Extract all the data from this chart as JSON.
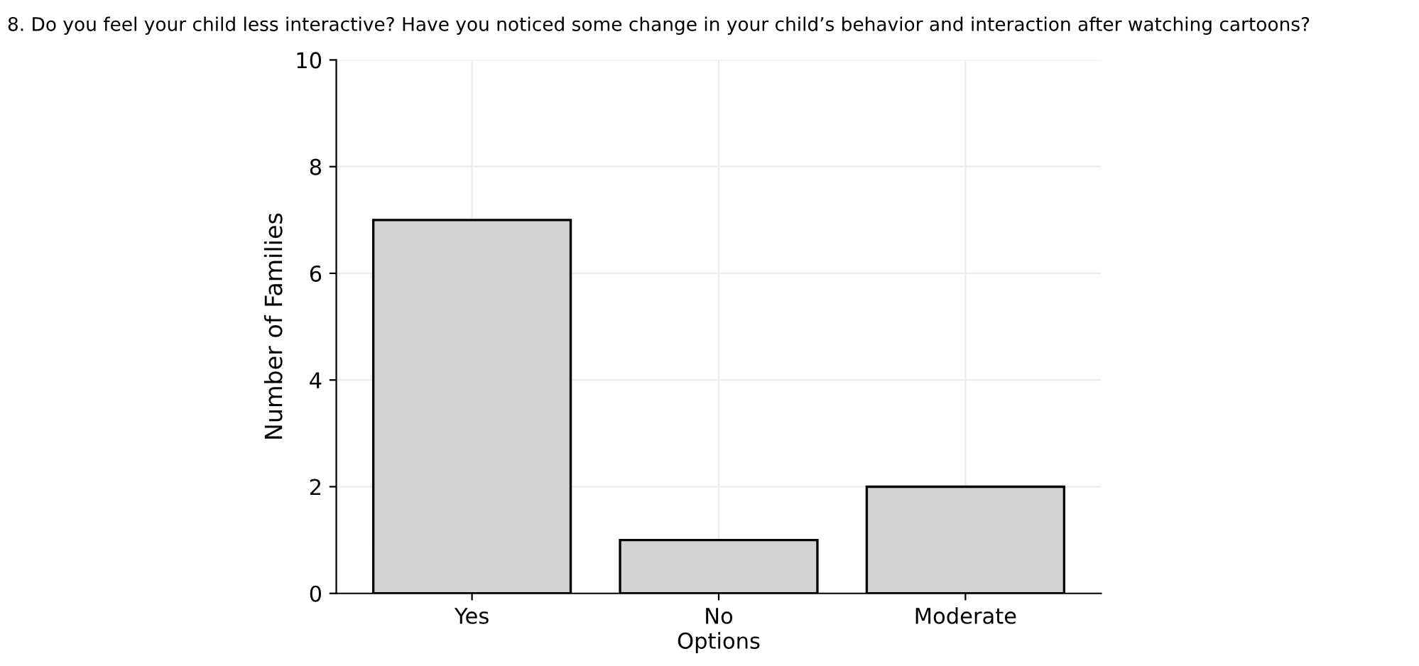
{
  "chart_data": {
    "type": "bar",
    "title": "8. Do you feel your child less interactive? Have you noticed some change in your child’s behavior and interaction after watching cartoons?",
    "xlabel": "Options",
    "ylabel": "Number of Families",
    "categories": [
      "Yes",
      "No",
      "Moderate"
    ],
    "values": [
      7,
      1,
      2
    ],
    "color": "#d3d3d3",
    "ylim": [
      0,
      10
    ],
    "yticks": [
      0,
      2,
      4,
      6,
      8,
      10
    ],
    "grid": true
  }
}
